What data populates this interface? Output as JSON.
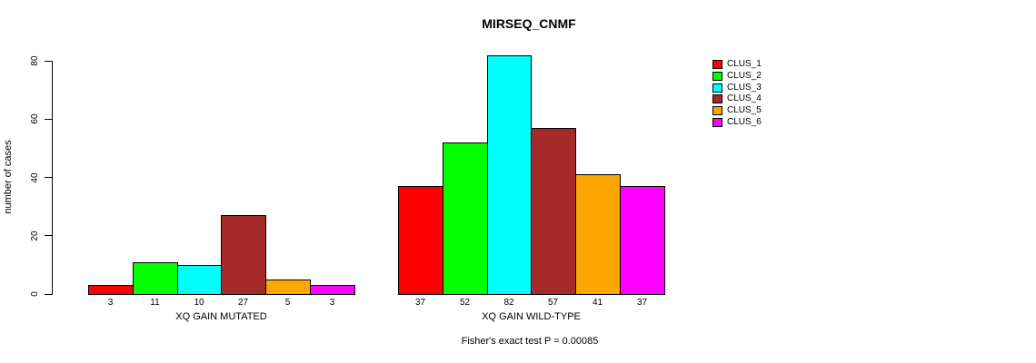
{
  "chart_data": {
    "type": "bar",
    "title": "MIRSEQ_CNMF",
    "ylabel": "number of cases",
    "xlabel": "",
    "yticks": [
      0,
      20,
      40,
      60,
      80
    ],
    "ylim": [
      0,
      88
    ],
    "grid": false,
    "legend_position": "top-right-outside",
    "bar_value_labels_shown": true,
    "groups": [
      {
        "label": "XQ GAIN MUTATED"
      },
      {
        "label": "XQ GAIN WILD-TYPE"
      }
    ],
    "series": [
      {
        "name": "CLUS_1",
        "color": "#FF0000",
        "values": [
          3,
          37
        ]
      },
      {
        "name": "CLUS_2",
        "color": "#00FF00",
        "values": [
          11,
          52
        ]
      },
      {
        "name": "CLUS_3",
        "color": "#00FFFF",
        "values": [
          10,
          82
        ]
      },
      {
        "name": "CLUS_4",
        "color": "#A52A2A",
        "values": [
          27,
          57
        ]
      },
      {
        "name": "CLUS_5",
        "color": "#FFA500",
        "values": [
          5,
          41
        ]
      },
      {
        "name": "CLUS_6",
        "color": "#FF00FF",
        "values": [
          3,
          37
        ]
      }
    ],
    "annotation": "Fisher's exact test P = 0.00085"
  }
}
